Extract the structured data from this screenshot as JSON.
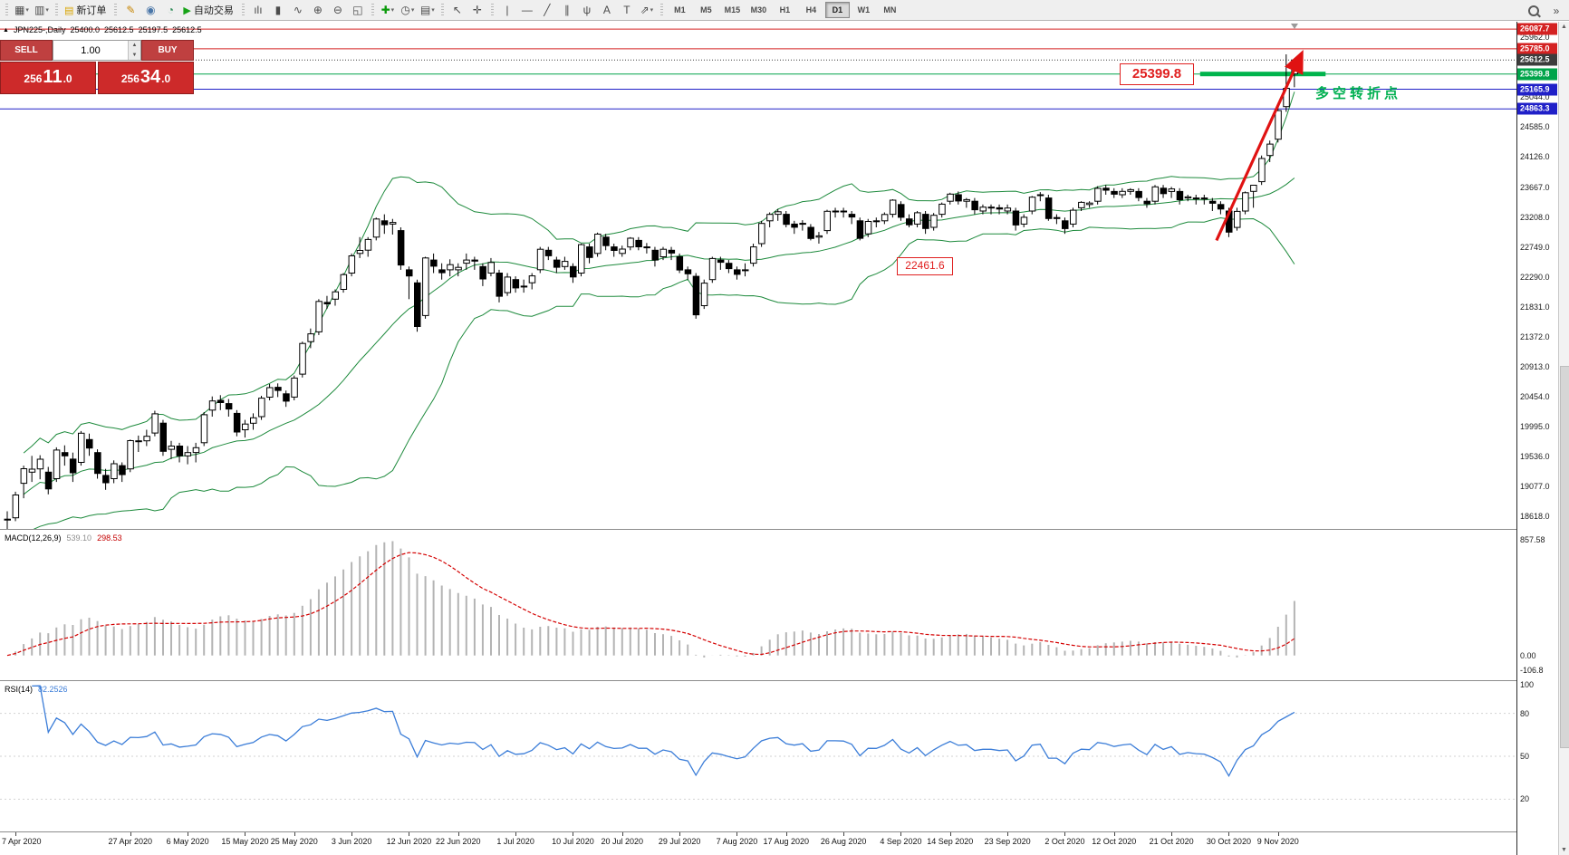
{
  "toolbar": {
    "groups": [
      {
        "items": [
          {
            "name": "new-chart-icon",
            "glyph": "▦",
            "caret": true
          },
          {
            "name": "profiles-icon",
            "glyph": "▥",
            "caret": true
          }
        ]
      },
      {
        "items": [
          {
            "name": "new-order-button",
            "glyph": "▤",
            "glyph_color": "#d8a400",
            "label": "新订单"
          }
        ]
      },
      {
        "items": [
          {
            "name": "metaeditor-icon",
            "glyph": "✎",
            "glyph_color": "#c78500"
          },
          {
            "name": "alerts-icon",
            "glyph": "◉",
            "glyph_color": "#4a76a8"
          },
          {
            "name": "news-icon",
            "glyph": "◔",
            "glyph_color": "#2e8b57"
          },
          {
            "name": "autotrading-button",
            "glyph": "▶",
            "glyph_color": "#17a317",
            "label": "自动交易"
          }
        ]
      },
      {
        "items": [
          {
            "name": "bar-chart-icon",
            "glyph": "ılı"
          },
          {
            "name": "candlestick-icon",
            "glyph": "▮"
          },
          {
            "name": "line-chart-icon",
            "glyph": "∿"
          },
          {
            "name": "zoom-in-icon",
            "glyph": "⊕"
          },
          {
            "name": "zoom-out-icon",
            "glyph": "⊖"
          },
          {
            "name": "tile-windows-icon",
            "glyph": "◱"
          }
        ]
      },
      {
        "items": [
          {
            "name": "indicators-icon",
            "glyph": "✚",
            "glyph_color": "#0a9a0a",
            "caret": true
          },
          {
            "name": "periods-icon",
            "glyph": "◷",
            "caret": true
          },
          {
            "name": "templates-icon",
            "glyph": "▤",
            "caret": true
          }
        ]
      },
      {
        "items": [
          {
            "name": "cursor-icon",
            "glyph": "↖"
          },
          {
            "name": "crosshair-icon",
            "glyph": "✛"
          }
        ]
      },
      {
        "items": [
          {
            "name": "vertical-line-icon",
            "glyph": "|"
          },
          {
            "name": "horizontal-line-icon",
            "glyph": "—"
          },
          {
            "name": "trendline-icon",
            "glyph": "╱"
          },
          {
            "name": "channel-icon",
            "glyph": "∥"
          },
          {
            "name": "pitchfork-icon",
            "glyph": "ψ"
          },
          {
            "name": "text-icon",
            "glyph": "A"
          },
          {
            "name": "label-icon",
            "glyph": "T"
          },
          {
            "name": "arrows-icon",
            "glyph": "⇗",
            "caret": true
          }
        ]
      }
    ],
    "timeframes": [
      "M1",
      "M5",
      "M15",
      "M30",
      "H1",
      "H4",
      "D1",
      "W1",
      "MN"
    ],
    "active_timeframe": "D1"
  },
  "chart": {
    "symbol_label": "JPN225-,Daily",
    "ohlc": {
      "open": "25400.0",
      "high": "25612.5",
      "low": "25197.5",
      "close": "25612.5"
    },
    "trade_panel": {
      "sell_label": "SELL",
      "buy_label": "BUY",
      "volume": "1.00",
      "sell_price": "25611.0",
      "buy_price": "25634.0"
    },
    "gridline_labels": [
      "25962.0",
      "25044.0",
      "24585.0",
      "24126.0",
      "23667.0",
      "23208.0",
      "22749.0",
      "22290.0",
      "21831.0",
      "21372.0",
      "20913.0",
      "20454.0",
      "19995.0",
      "19536.0",
      "19077.0",
      "18618.0"
    ],
    "price_markers": [
      {
        "label": "26087.7",
        "price": 26087.7,
        "color": "#d42222",
        "line": "solid"
      },
      {
        "label": "25785.0",
        "price": 25785.0,
        "color": "#d42222",
        "line": "solid"
      },
      {
        "label": "25612.5",
        "price": 25612.5,
        "color": "#3c3c3c",
        "line": "dotted"
      },
      {
        "label": "25399.8",
        "price": 25399.8,
        "color": "#00a44a",
        "line": "solid"
      },
      {
        "label": "25165.9",
        "price": 25165.9,
        "color": "#2020c8",
        "line": "solid"
      },
      {
        "label": "24863.3",
        "price": 24863.3,
        "color": "#2020c8",
        "line": "solid"
      }
    ],
    "annotations": {
      "level_label_1": "25399.8",
      "level_label_2": "22461.6",
      "note_text": "多空转折点"
    }
  },
  "macd": {
    "name": "MACD(12,26,9)",
    "main_value": "539.10",
    "signal_value": "298.53",
    "axis_labels": [
      "857.58",
      "0.00",
      "-106.8"
    ]
  },
  "rsi": {
    "name": "RSI(14)",
    "value": "82.2526",
    "axis_labels": [
      "100",
      "80",
      "50",
      "20"
    ]
  },
  "chart_data": {
    "type": "candlestick",
    "symbol": "JPN225",
    "timeframe": "Daily",
    "y_range": [
      18430,
      26200
    ],
    "gridline_step": 459.0,
    "indicators": {
      "bollinger": {
        "period": 20,
        "deviation": 2
      },
      "macd": {
        "fast": 12,
        "slow": 26,
        "signal": 9
      },
      "rsi": {
        "period": 14
      }
    },
    "x_date_labels": [
      {
        "text": "7 Apr 2020",
        "index": 1
      },
      {
        "text": "27 Apr 2020",
        "index": 15
      },
      {
        "text": "6 May 2020",
        "index": 22
      },
      {
        "text": "15 May 2020",
        "index": 29
      },
      {
        "text": "25 May 2020",
        "index": 35
      },
      {
        "text": "3 Jun 2020",
        "index": 42
      },
      {
        "text": "12 Jun 2020",
        "index": 49
      },
      {
        "text": "22 Jun 2020",
        "index": 55
      },
      {
        "text": "1 Jul 2020",
        "index": 62
      },
      {
        "text": "10 Jul 2020",
        "index": 69
      },
      {
        "text": "20 Jul 2020",
        "index": 75
      },
      {
        "text": "29 Jul 2020",
        "index": 82
      },
      {
        "text": "7 Aug 2020",
        "index": 89
      },
      {
        "text": "17 Aug 2020",
        "index": 95
      },
      {
        "text": "26 Aug 2020",
        "index": 102
      },
      {
        "text": "4 Sep 2020",
        "index": 109
      },
      {
        "text": "14 Sep 2020",
        "index": 115
      },
      {
        "text": "23 Sep 2020",
        "index": 122
      },
      {
        "text": "2 Oct 2020",
        "index": 129
      },
      {
        "text": "12 Oct 2020",
        "index": 135
      },
      {
        "text": "21 Oct 2020",
        "index": 142
      },
      {
        "text": "30 Oct 2020",
        "index": 149
      },
      {
        "text": "9 Nov 2020",
        "index": 155
      }
    ],
    "green_segment": {
      "price": 25399.8,
      "from_index": 145.5,
      "to_index": 160.8
    },
    "arrow": {
      "from_index": 147.5,
      "from_price": 22850,
      "to_index": 157.8,
      "to_price": 25690,
      "color": "#e01212"
    },
    "candles_ohlc": [
      [
        18580,
        18700,
        18250,
        18576
      ],
      [
        18600,
        19000,
        18550,
        18950
      ],
      [
        19130,
        19400,
        18900,
        19353
      ],
      [
        19300,
        19550,
        19150,
        19346
      ],
      [
        19350,
        19560,
        19190,
        19499
      ],
      [
        19300,
        19380,
        18960,
        19043
      ],
      [
        19200,
        19680,
        19150,
        19638
      ],
      [
        19600,
        19710,
        19400,
        19550
      ],
      [
        19500,
        19600,
        19150,
        19290
      ],
      [
        19450,
        19930,
        19400,
        19897
      ],
      [
        19800,
        19890,
        19550,
        19669
      ],
      [
        19600,
        19650,
        19200,
        19281
      ],
      [
        19250,
        19350,
        19030,
        19138
      ],
      [
        19200,
        19480,
        19130,
        19429
      ],
      [
        19400,
        19450,
        19150,
        19262
      ],
      [
        19350,
        19800,
        19300,
        19783
      ],
      [
        19780,
        19860,
        19610,
        19771
      ],
      [
        19780,
        19950,
        19700,
        19850
      ],
      [
        19900,
        20240,
        19850,
        20194
      ],
      [
        20050,
        20100,
        19550,
        19619
      ],
      [
        19650,
        19780,
        19500,
        19700
      ],
      [
        19700,
        19750,
        19450,
        19550
      ],
      [
        19550,
        19700,
        19420,
        19600
      ],
      [
        19600,
        19750,
        19450,
        19674
      ],
      [
        19750,
        20220,
        19700,
        20179
      ],
      [
        20250,
        20460,
        20150,
        20390
      ],
      [
        20400,
        20480,
        20250,
        20366
      ],
      [
        20350,
        20420,
        20150,
        20267
      ],
      [
        20200,
        20250,
        19850,
        19914
      ],
      [
        19950,
        20100,
        19830,
        20037
      ],
      [
        20050,
        20200,
        19950,
        20133
      ],
      [
        20150,
        20470,
        20100,
        20433
      ],
      [
        20450,
        20650,
        20400,
        20595
      ],
      [
        20600,
        20660,
        20450,
        20552
      ],
      [
        20500,
        20550,
        20300,
        20388
      ],
      [
        20450,
        20780,
        20400,
        20741
      ],
      [
        20800,
        21300,
        20750,
        21271
      ],
      [
        21300,
        21500,
        21200,
        21419
      ],
      [
        21450,
        21950,
        21400,
        21916
      ],
      [
        21900,
        22000,
        21800,
        21878
      ],
      [
        21950,
        22100,
        21850,
        22062
      ],
      [
        22100,
        22350,
        22050,
        22326
      ],
      [
        22350,
        22650,
        22300,
        22614
      ],
      [
        22650,
        22900,
        22580,
        22696
      ],
      [
        22700,
        22900,
        22600,
        22864
      ],
      [
        22900,
        23200,
        22850,
        23178
      ],
      [
        23150,
        23250,
        22950,
        23091
      ],
      [
        23100,
        23180,
        22940,
        23125
      ],
      [
        23000,
        23050,
        22400,
        22473
      ],
      [
        22400,
        22450,
        21950,
        22305
      ],
      [
        22200,
        22250,
        21450,
        21531
      ],
      [
        21700,
        22600,
        21650,
        22582
      ],
      [
        22550,
        22650,
        22350,
        22456
      ],
      [
        22400,
        22500,
        22250,
        22355
      ],
      [
        22400,
        22560,
        22300,
        22479
      ],
      [
        22400,
        22500,
        22300,
        22437
      ],
      [
        22500,
        22650,
        22400,
        22549
      ],
      [
        22550,
        22600,
        22400,
        22534
      ],
      [
        22450,
        22500,
        22150,
        22260
      ],
      [
        22350,
        22580,
        22300,
        22512
      ],
      [
        22350,
        22400,
        21900,
        21995
      ],
      [
        22050,
        22350,
        22000,
        22288
      ],
      [
        22250,
        22300,
        22050,
        22122
      ],
      [
        22150,
        22250,
        22050,
        22146
      ],
      [
        22200,
        22350,
        22100,
        22306
      ],
      [
        22400,
        22750,
        22350,
        22714
      ],
      [
        22700,
        22750,
        22550,
        22615
      ],
      [
        22550,
        22600,
        22350,
        22439
      ],
      [
        22450,
        22600,
        22400,
        22529
      ],
      [
        22450,
        22500,
        22200,
        22291
      ],
      [
        22350,
        22800,
        22300,
        22785
      ],
      [
        22750,
        22800,
        22500,
        22587
      ],
      [
        22650,
        22970,
        22600,
        22946
      ],
      [
        22900,
        22950,
        22700,
        22770
      ],
      [
        22750,
        22800,
        22600,
        22696
      ],
      [
        22650,
        22770,
        22600,
        22717
      ],
      [
        22750,
        22900,
        22700,
        22884
      ],
      [
        22850,
        22900,
        22700,
        22752
      ],
      [
        22750,
        22810,
        22650,
        22751
      ],
      [
        22700,
        22750,
        22450,
        22550
      ],
      [
        22600,
        22750,
        22550,
        22715
      ],
      [
        22700,
        22750,
        22550,
        22657
      ],
      [
        22600,
        22650,
        22350,
        22397
      ],
      [
        22400,
        22450,
        22250,
        22339
      ],
      [
        22300,
        22350,
        21650,
        21710
      ],
      [
        21850,
        22250,
        21800,
        22195
      ],
      [
        22250,
        22600,
        22200,
        22573
      ],
      [
        22550,
        22600,
        22400,
        22515
      ],
      [
        22500,
        22550,
        22350,
        22418
      ],
      [
        22400,
        22450,
        22250,
        22330
      ],
      [
        22400,
        22500,
        22300,
        22400
      ],
      [
        22500,
        22800,
        22450,
        22750
      ],
      [
        22800,
        23150,
        22750,
        23110
      ],
      [
        23150,
        23280,
        23050,
        23249
      ],
      [
        23250,
        23330,
        23150,
        23289
      ],
      [
        23250,
        23300,
        23050,
        23096
      ],
      [
        23100,
        23150,
        22950,
        23051
      ],
      [
        23100,
        23160,
        23000,
        23111
      ],
      [
        23050,
        23100,
        22850,
        22880
      ],
      [
        22900,
        22980,
        22800,
        22920
      ],
      [
        23000,
        23320,
        22950,
        23296
      ],
      [
        23300,
        23350,
        23200,
        23297
      ],
      [
        23300,
        23350,
        23200,
        23290
      ],
      [
        23250,
        23300,
        23100,
        23208
      ],
      [
        23150,
        23200,
        22850,
        22882
      ],
      [
        22950,
        23180,
        22900,
        23140
      ],
      [
        23150,
        23200,
        23050,
        23138
      ],
      [
        23150,
        23280,
        23100,
        23247
      ],
      [
        23250,
        23480,
        23200,
        23466
      ],
      [
        23400,
        23450,
        23150,
        23205
      ],
      [
        23180,
        23250,
        23050,
        23090
      ],
      [
        23100,
        23300,
        23050,
        23274
      ],
      [
        23250,
        23300,
        22950,
        23032
      ],
      [
        23050,
        23270,
        23000,
        23235
      ],
      [
        23250,
        23430,
        23200,
        23406
      ],
      [
        23450,
        23580,
        23400,
        23559
      ],
      [
        23550,
        23600,
        23400,
        23454
      ],
      [
        23450,
        23500,
        23350,
        23475
      ],
      [
        23450,
        23500,
        23250,
        23319
      ],
      [
        23300,
        23400,
        23250,
        23360
      ],
      [
        23350,
        23400,
        23250,
        23360
      ],
      [
        23350,
        23400,
        23250,
        23331
      ],
      [
        23300,
        23400,
        23250,
        23346
      ],
      [
        23300,
        23350,
        23000,
        23087
      ],
      [
        23100,
        23250,
        23050,
        23204
      ],
      [
        23300,
        23530,
        23250,
        23512
      ],
      [
        23550,
        23590,
        23450,
        23539
      ],
      [
        23500,
        23550,
        23150,
        23185
      ],
      [
        23200,
        23250,
        23100,
        23185
      ],
      [
        23150,
        23200,
        22950,
        23030
      ],
      [
        23100,
        23350,
        23050,
        23312
      ],
      [
        23350,
        23450,
        23300,
        23433
      ],
      [
        23400,
        23450,
        23350,
        23422
      ],
      [
        23450,
        23680,
        23400,
        23647
      ],
      [
        23650,
        23700,
        23550,
        23620
      ],
      [
        23600,
        23650,
        23500,
        23559
      ],
      [
        23550,
        23650,
        23500,
        23601
      ],
      [
        23600,
        23650,
        23550,
        23627
      ],
      [
        23600,
        23650,
        23450,
        23507
      ],
      [
        23450,
        23500,
        23350,
        23411
      ],
      [
        23450,
        23700,
        23400,
        23671
      ],
      [
        23650,
        23700,
        23500,
        23567
      ],
      [
        23600,
        23670,
        23500,
        23639
      ],
      [
        23600,
        23650,
        23400,
        23474
      ],
      [
        23500,
        23550,
        23450,
        23517
      ],
      [
        23500,
        23550,
        23400,
        23494
      ],
      [
        23500,
        23550,
        23400,
        23485
      ],
      [
        23450,
        23500,
        23300,
        23419
      ],
      [
        23400,
        23450,
        23250,
        23331
      ],
      [
        23300,
        23350,
        22900,
        22977
      ],
      [
        23050,
        23350,
        23000,
        23295
      ],
      [
        23300,
        23600,
        23250,
        23580
      ],
      [
        23600,
        23700,
        23350,
        23695
      ],
      [
        23750,
        24150,
        23700,
        24105
      ],
      [
        24150,
        24380,
        24050,
        24325
      ],
      [
        24400,
        24900,
        24350,
        24839
      ],
      [
        24900,
        25700,
        24820,
        25180
      ],
      [
        25400,
        25612.5,
        25197.5,
        25612.5
      ]
    ]
  }
}
